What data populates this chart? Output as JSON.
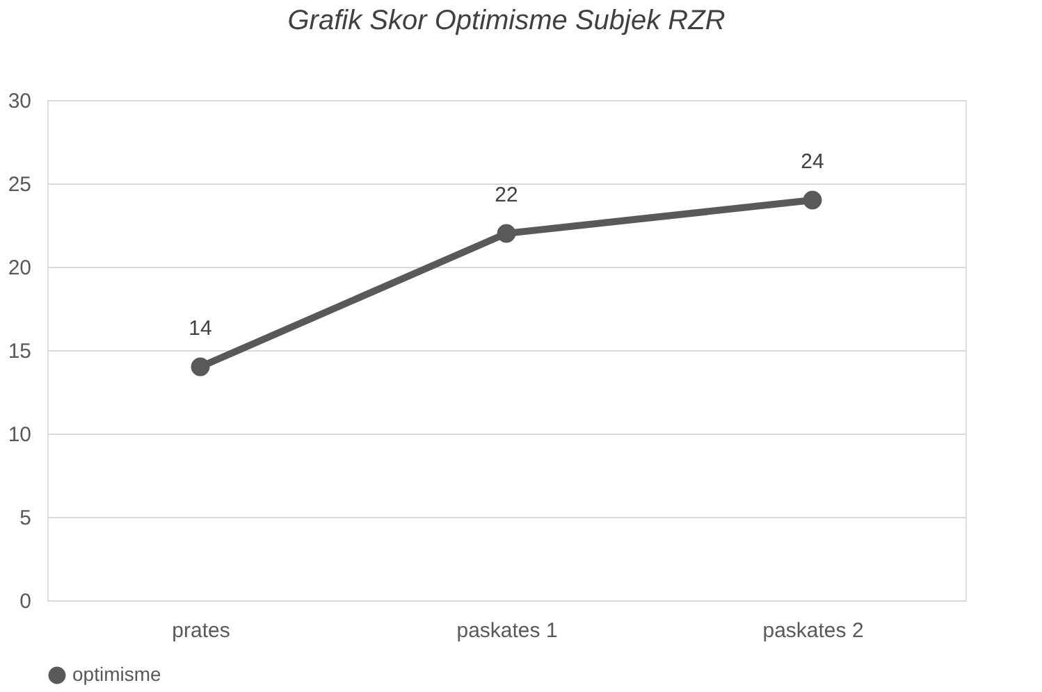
{
  "chart_data": {
    "type": "line",
    "title": "Grafik Skor Optimisme Subjek RZR",
    "categories": [
      "prates",
      "paskates 1",
      "paskates 2"
    ],
    "series": [
      {
        "name": "optimisme",
        "color": "#595959",
        "values": [
          14,
          22,
          24
        ]
      }
    ],
    "ylim": [
      0,
      30
    ],
    "yticks": [
      0,
      5,
      10,
      15,
      20,
      25,
      30
    ],
    "grid": "y",
    "legend": "bottom",
    "marker": "circle",
    "line_style": "solid",
    "data_labels": true
  }
}
